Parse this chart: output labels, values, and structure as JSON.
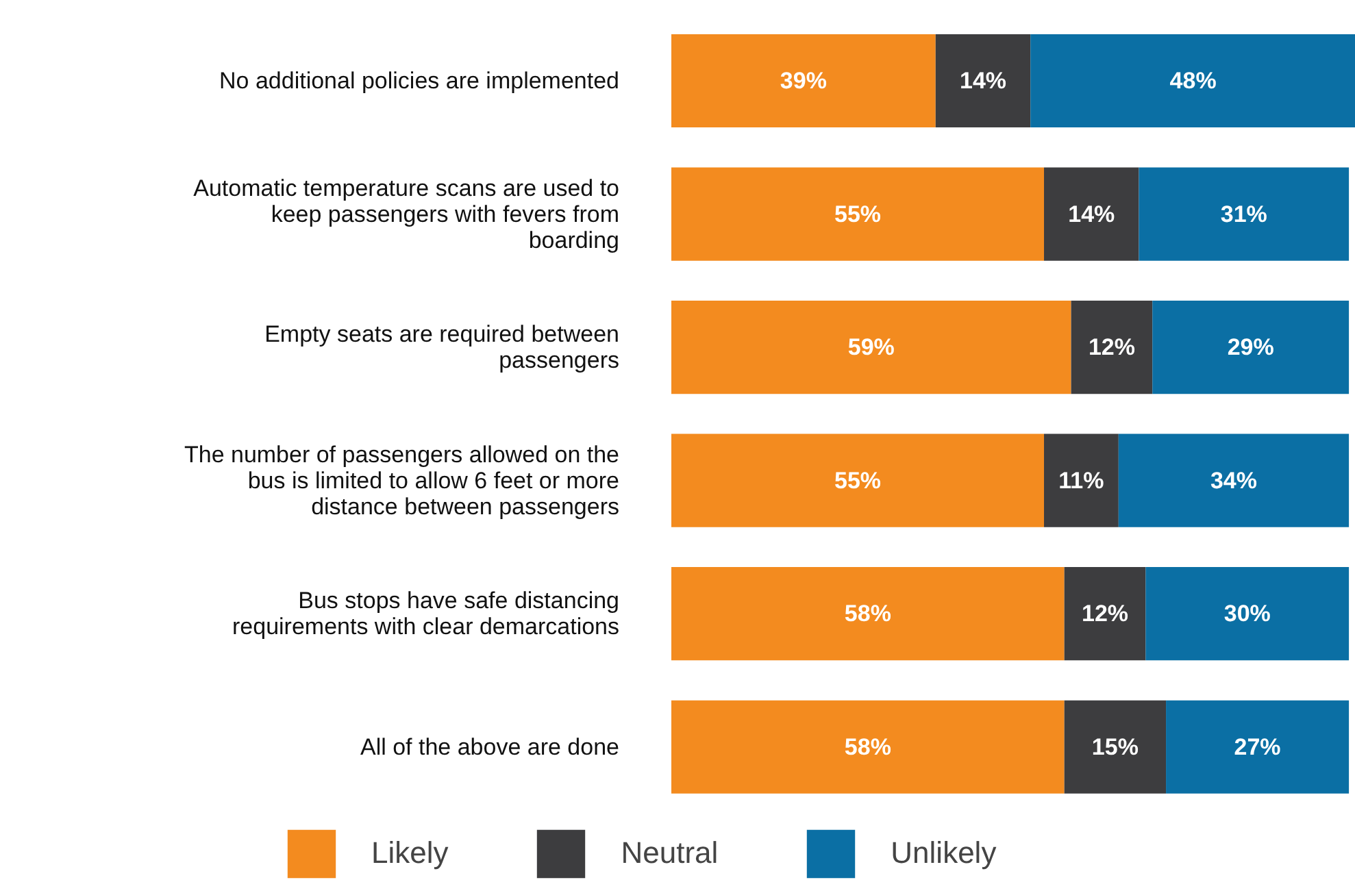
{
  "chart_data": {
    "type": "bar",
    "orientation": "horizontal",
    "stacked": true,
    "data_labels": true,
    "grid": false,
    "legend": "bottom",
    "tick_labels": "y",
    "categories": [
      "No additional policies are implemented",
      "Automatic temperature scans are used to keep passengers with fevers from boarding",
      "Empty seats are required between passengers",
      "The number of passengers allowed on the bus is limited to allow 6 feet or more distance between passengers",
      "Bus stops have safe distancing requirements with clear demarcations",
      "All of the above are done"
    ],
    "series": [
      {
        "name": "Likely",
        "color": "#f38b1f",
        "values": [
          39,
          55,
          59,
          55,
          58,
          58
        ],
        "value_labels": [
          "39%",
          "55%",
          "59%",
          "55%",
          "58%",
          "58%"
        ]
      },
      {
        "name": "Neutral",
        "color": "#3d3d3f",
        "values": [
          14,
          14,
          12,
          11,
          12,
          15
        ],
        "value_labels": [
          "14%",
          "14%",
          "12%",
          "11%",
          "12%",
          "15%"
        ]
      },
      {
        "name": "Unlikely",
        "color": "#0b6fa4",
        "values": [
          48,
          31,
          29,
          34,
          30,
          27
        ],
        "value_labels": [
          "48%",
          "31%",
          "29%",
          "34%",
          "30%",
          "27%"
        ]
      }
    ]
  }
}
